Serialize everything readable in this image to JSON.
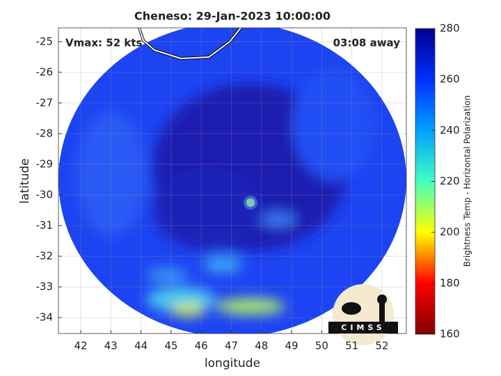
{
  "chart_data": {
    "type": "image",
    "title": "Cheneso: 29-Jan-2023 10:00:00",
    "x_label": "longitude",
    "y_label": "latitude",
    "annotations": [
      "Vmax: 52 kts",
      "03:08 away"
    ],
    "logo_text": "CIMSS",
    "xlim": [
      41.26,
      52.81
    ],
    "xticks": [
      42,
      43,
      44,
      45,
      46,
      47,
      48,
      49,
      50,
      51,
      52
    ],
    "ylim": [
      -34.52,
      -24.55
    ],
    "yticks": [
      -25,
      -26,
      -27,
      -28,
      -29,
      -30,
      -31,
      -32,
      -33,
      -34
    ],
    "grid": true,
    "colorbar": {
      "label": "Brightness Temp - Horizontal Polarization",
      "clim": [
        160,
        280
      ],
      "ticks": [
        160,
        180,
        200,
        220,
        240,
        260,
        280
      ],
      "colormap": [
        "#800000",
        "#ff0000",
        "#ffff00",
        "#40ffc0",
        "#00a0ff",
        "#0030ff",
        "#00008f"
      ]
    }
  }
}
